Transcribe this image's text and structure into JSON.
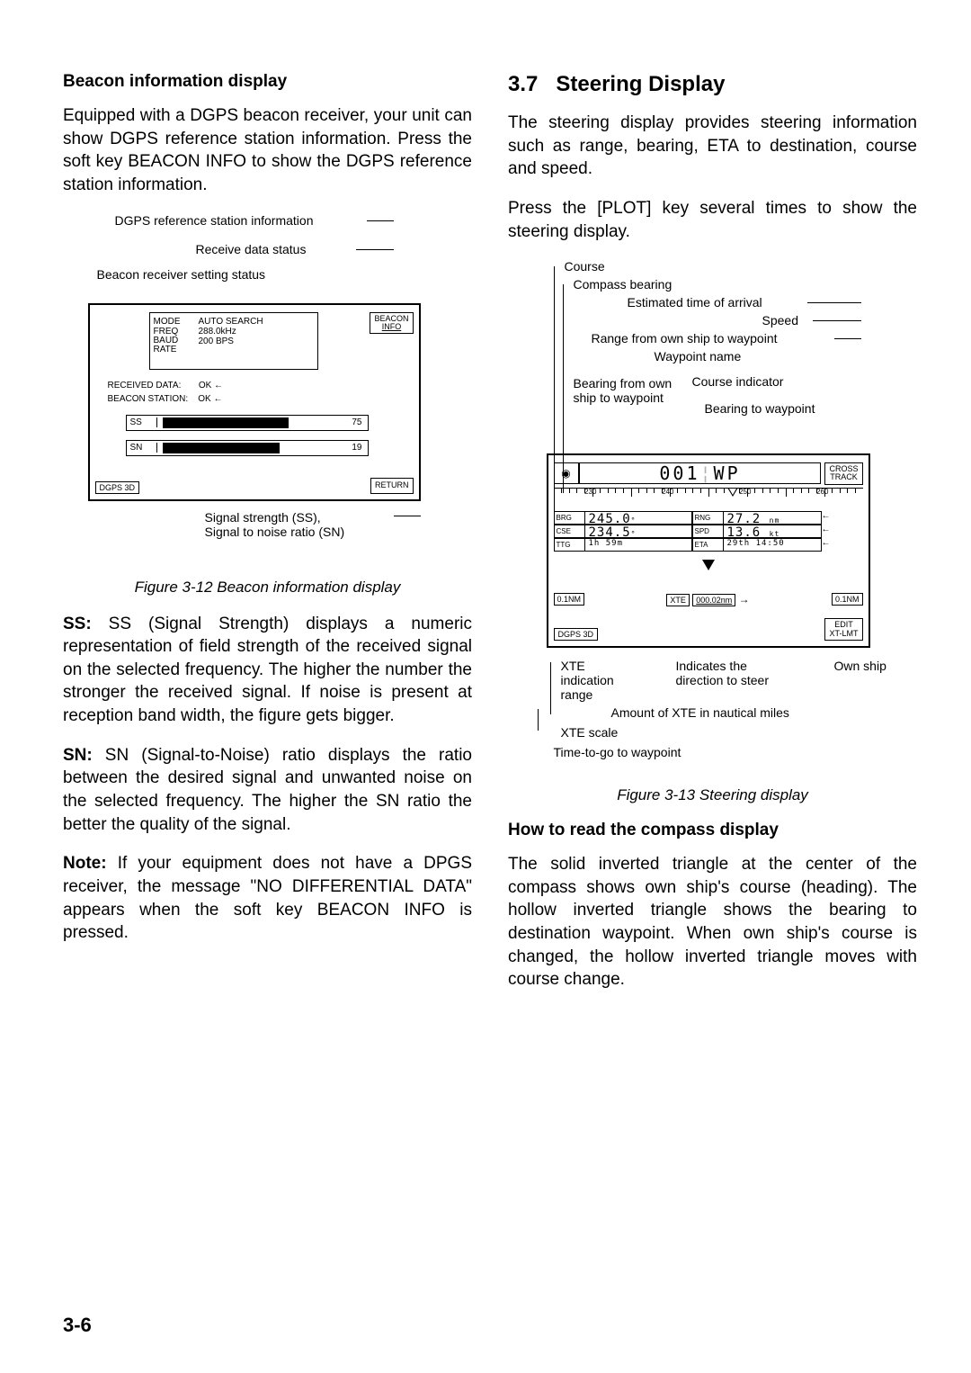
{
  "left": {
    "heading": "Beacon information display",
    "p1": "Equipped with a DGPS beacon receiver, your unit can show DGPS reference station information. Press the soft key BEACON INFO to show the DGPS reference station information.",
    "p2": "SS (Signal Strength) displays a numeric representation of field strength of the received signal on the selected frequency. The higher the number the stronger the received signal. If noise is present at reception band width, the figure gets bigger.",
    "p2label": "SS:",
    "p3": "SN (Signal-to-Noise) ratio displays the ratio between the desired signal and unwanted noise on the selected frequency. The higher the SN ratio the better the quality of the signal.",
    "p3label": "SN:",
    "p4": "If your equipment does not have a DPGS receiver, the message \"NO DIFFERENTIAL DATA\" appears when the soft key BEACON INFO is pressed.",
    "p4label": "Note:",
    "fig_caption": "Figure 3-12 Beacon information display",
    "beacon": {
      "callouts": {
        "dgps_ref": "DGPS reference station information",
        "receive_data": "Receive data status",
        "beacon_setting": "Beacon receiver setting status",
        "sig_strength": "Signal strength (SS),",
        "sig_noise": "Signal to noise ratio (SN)"
      },
      "mode_label": "MODE",
      "mode_value": "AUTO SEARCH",
      "freq_label": "FREQ",
      "freq_value": "288.0kHz",
      "baud_label": "BAUD RATE",
      "baud_value": "200 BPS",
      "received_data": "RECEIVED DATA:",
      "received_data_val": "OK",
      "beacon_station": "BEACON STATION:",
      "beacon_station_val": "OK",
      "ss_label": "SS",
      "ss_value": "75",
      "sn_label": "SN",
      "sn_value": "19",
      "softkey1": "BEACON",
      "softkey1b": "INFO",
      "softkey2": "RETURN",
      "fixmode": "DGPS 3D"
    }
  },
  "right": {
    "num": "3.7",
    "title": "Steering Display",
    "p1": "The steering display provides steering information such as range, bearing, ETA to destination, course and speed.",
    "p2": "Press the [PLOT] key several times to show the steering display.",
    "fig_caption": "Figure 3-13 Steering display",
    "heading2": "How to read the compass display",
    "p3": "The solid inverted triangle at the center of the compass shows own ship's course (heading). The hollow inverted triangle shows the bearing to destination waypoint. When own ship's course is changed, the hollow inverted triangle moves with course change.",
    "steer": {
      "callouts": {
        "course": "Course",
        "compass_bearing": "Compass bearing",
        "eta": "Estimated time of arrival",
        "speed": "Speed",
        "range": "Range from own ship to waypoint",
        "wp_name": "Waypoint name",
        "brg_from": "Bearing from own ship to waypoint",
        "course_ind": "Course indicator",
        "brg_to": "Bearing to waypoint",
        "direction": "Indicates the direction to steer",
        "own_ship": "Own ship",
        "xte_amount": "Amount of XTE in nautical miles",
        "xte_scale": "XTE scale",
        "ttg": "Time-to-go to waypoint",
        "xte_range": "XTE indication range"
      },
      "wp_num": "001",
      "wp_name": "WP",
      "softkey1": "CROSS",
      "softkey1b": "TRACK",
      "softkey2": "EDIT",
      "softkey2b": "XT-LMT",
      "ticks": [
        "230",
        "240",
        "250",
        "260"
      ],
      "brg_l": "BRG",
      "brg_v": "245.0",
      "brg_u": "°",
      "cse_l": "CSE",
      "cse_v": "234.5",
      "cse_u": "°",
      "ttg_l": "TTG",
      "ttg_v": "1h 59m",
      "rng_l": "RNG",
      "rng_v": "27.2",
      "rng_u": "nm",
      "spd_l": "SPD",
      "spd_v": "13.6",
      "spd_u": "kt",
      "eta_l": "ETA",
      "eta_v": "29th 14:50",
      "xte_l": "XTE",
      "xte_v": "000.02nm",
      "nm01": "0.1NM",
      "fixmode": "DGPS 3D"
    }
  },
  "page": "3-6"
}
